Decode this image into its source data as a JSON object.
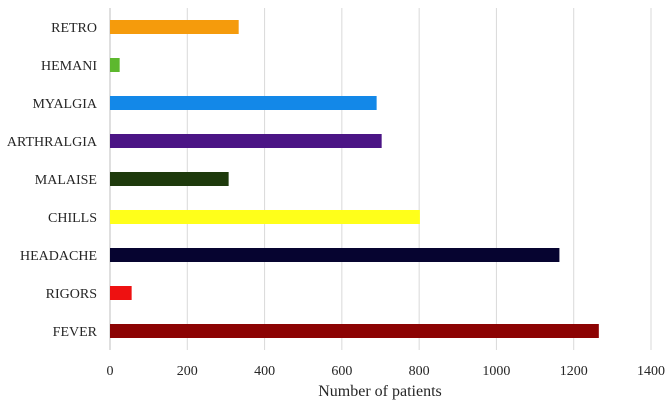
{
  "chart_data": {
    "type": "bar",
    "orientation": "horizontal",
    "categories": [
      "RETRO",
      "HEMANI",
      "MYALGIA",
      "ARTHRALGIA",
      "MALAISE",
      "CHILLS",
      "HEADACHE",
      "RIGORS",
      "FEVER"
    ],
    "values": [
      333,
      25,
      690,
      703,
      307,
      802,
      1163,
      56,
      1265
    ],
    "colors": [
      "#f59b0c",
      "#5db82e",
      "#1388e8",
      "#4b1585",
      "#1e3a0c",
      "#ffff1a",
      "#060430",
      "#ee1111",
      "#8c0303"
    ],
    "xlabel": "Number of patients",
    "ylabel": "",
    "xlim": [
      0,
      1400
    ],
    "xticks": [
      0,
      200,
      400,
      600,
      800,
      1000,
      1200,
      1400
    ],
    "grid": "vertical",
    "legend": "none"
  }
}
